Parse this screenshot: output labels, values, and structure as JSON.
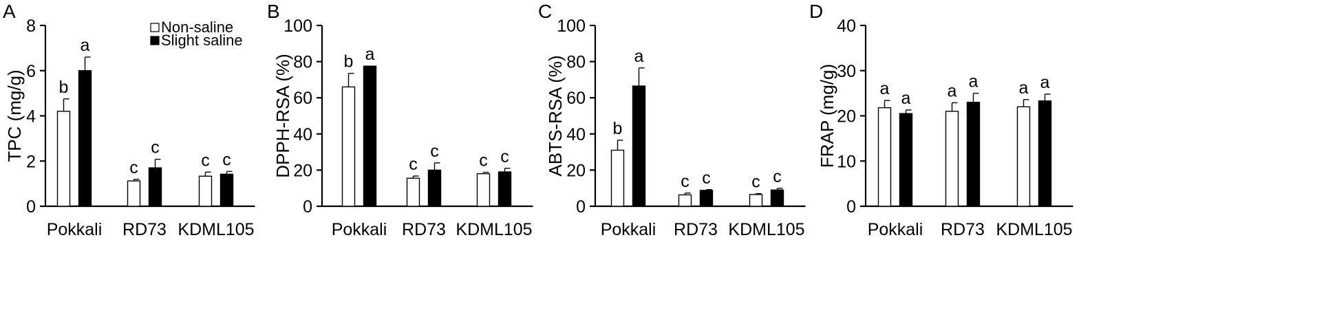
{
  "chart_data": [
    {
      "type": "bar",
      "panel": "A",
      "categories": [
        "Pokkali",
        "RD73",
        "KDML105"
      ],
      "ylabel": "TPC (mg/g)",
      "ylim": [
        0,
        8
      ],
      "yticks": [
        0,
        2,
        4,
        6,
        8
      ],
      "legend": {
        "placement": "top-right",
        "entries": [
          "Non-saline",
          "Slight saline"
        ]
      },
      "series": [
        {
          "name": "Non-saline",
          "color": "#ffffff",
          "values": [
            4.2,
            1.12,
            1.33
          ],
          "errors": [
            0.55,
            0.07,
            0.18
          ],
          "labels": [
            "b",
            "c",
            "c"
          ]
        },
        {
          "name": "Slight saline",
          "color": "#000000",
          "values": [
            6.0,
            1.7,
            1.42
          ],
          "errors": [
            0.6,
            0.38,
            0.12
          ],
          "labels": [
            "a",
            "c",
            "c"
          ]
        }
      ]
    },
    {
      "type": "bar",
      "panel": "B",
      "categories": [
        "Pokkali",
        "RD73",
        "KDML105"
      ],
      "ylabel": "DPPH-RSA (%)",
      "ylim": [
        0,
        100
      ],
      "yticks": [
        0,
        20,
        40,
        60,
        80,
        100
      ],
      "series": [
        {
          "name": "Non-saline",
          "color": "#ffffff",
          "values": [
            66,
            15.5,
            18
          ],
          "errors": [
            7.5,
            1.2,
            0.8
          ],
          "labels": [
            "b",
            "c",
            "c"
          ]
        },
        {
          "name": "Slight saline",
          "color": "#000000",
          "values": [
            77.5,
            20,
            19
          ],
          "errors": [
            0,
            4,
            2
          ],
          "labels": [
            "a",
            "c",
            "c"
          ]
        }
      ]
    },
    {
      "type": "bar",
      "panel": "C",
      "categories": [
        "Pokkali",
        "RD73",
        "KDML105"
      ],
      "ylabel": "ABTS-RSA (%)",
      "ylim": [
        0,
        100
      ],
      "yticks": [
        0,
        20,
        40,
        60,
        80,
        100
      ],
      "series": [
        {
          "name": "Non-saline",
          "color": "#ffffff",
          "values": [
            31,
            6.3,
            6.5
          ],
          "errors": [
            5.5,
            1.0,
            0.5
          ],
          "labels": [
            "b",
            "c",
            "c"
          ]
        },
        {
          "name": "Slight saline",
          "color": "#000000",
          "values": [
            66.5,
            8.8,
            9
          ],
          "errors": [
            10,
            0.4,
            0.9
          ],
          "labels": [
            "a",
            "c",
            "c"
          ]
        }
      ]
    },
    {
      "type": "bar",
      "panel": "D",
      "categories": [
        "Pokkali",
        "RD73",
        "KDML105"
      ],
      "ylabel": "FRAP (mg/g)",
      "ylim": [
        0,
        40
      ],
      "yticks": [
        0,
        10,
        20,
        30,
        40
      ],
      "series": [
        {
          "name": "Non-saline",
          "color": "#ffffff",
          "values": [
            21.8,
            21,
            22
          ],
          "errors": [
            1.6,
            1.9,
            1.6
          ],
          "labels": [
            "a",
            "a",
            "a"
          ]
        },
        {
          "name": "Slight saline",
          "color": "#000000",
          "values": [
            20.5,
            23,
            23.3
          ],
          "errors": [
            0.8,
            2.0,
            1.5
          ],
          "labels": [
            "a",
            "a",
            "a"
          ]
        }
      ]
    }
  ]
}
